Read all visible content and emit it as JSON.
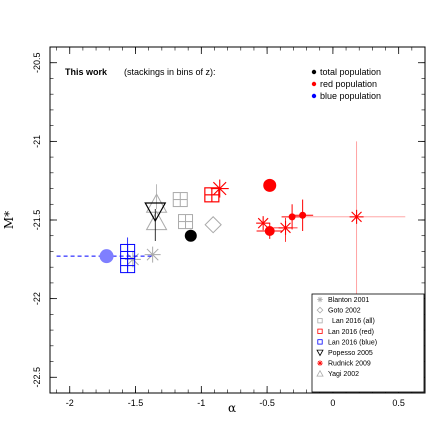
{
  "chart_data": {
    "type": "scatter",
    "xlabel": "α",
    "ylabel": "M*",
    "xlim": [
      -2.15,
      0.7
    ],
    "ylim": [
      -22.6,
      -20.4
    ],
    "y_inverted": true,
    "xticks": [
      -2,
      -1.5,
      -1,
      -0.5,
      0,
      0.5
    ],
    "xtick_labels": [
      "-2",
      "-1.5",
      "-1",
      "-0.5",
      "0",
      "0.5"
    ],
    "yticks": [
      -20.5,
      -21,
      -21.5,
      -22,
      -22.5
    ],
    "ytick_labels": [
      "-20.5",
      "-21",
      "-21.5",
      "-22",
      "-22.5"
    ],
    "grid": false,
    "legend_main": {
      "placement": "top-left",
      "title": "This work",
      "note": "(stackings in bins of z):",
      "entries": [
        {
          "label": "total population",
          "color": "#000000"
        },
        {
          "label": "red population",
          "color": "#ff0000"
        },
        {
          "label": "blue population",
          "color": "#0000ff"
        }
      ]
    },
    "legend_refs": {
      "placement": "bottom-right",
      "entries": [
        {
          "label": "Blanton 2001",
          "marker": "asterisk",
          "color": "#aaaaaa"
        },
        {
          "label": "Goto 2002",
          "marker": "diamond",
          "color": "#aaaaaa"
        },
        {
          "label": "Lan 2016 (all)",
          "marker": "square",
          "color": "#aaaaaa"
        },
        {
          "label": "Lan 2016 (red)",
          "marker": "square",
          "color": "#ff0000"
        },
        {
          "label": "Lan 2016 (blue)",
          "marker": "square",
          "color": "#0000ff"
        },
        {
          "label": "Popesso 2005",
          "marker": "triangle-down",
          "color": "#000000"
        },
        {
          "label": "Rudnick 2009",
          "marker": "asterisk",
          "color": "#ff0000"
        },
        {
          "label": "Yagi 2002",
          "marker": "triangle-up",
          "color": "#aaaaaa"
        }
      ]
    },
    "series": [
      {
        "name": "total population",
        "color": "#000000",
        "points": [
          {
            "x": -1.08,
            "y": -21.6
          }
        ]
      },
      {
        "name": "red population",
        "color": "#ff0000",
        "points": [
          {
            "x": -0.48,
            "y": -21.28,
            "yerr": 0.03
          },
          {
            "x": -0.48,
            "y": -21.57,
            "xerr": 0.1,
            "yerr": 0.05
          },
          {
            "x": -0.31,
            "y": -21.48,
            "xerr": 0.08,
            "yerr": 0.08
          },
          {
            "x": -0.23,
            "y": -21.47,
            "xerr": 0.08,
            "yerr": 0.1
          }
        ]
      },
      {
        "name": "blue population",
        "color": "#0000ff",
        "points": [
          {
            "x": -1.72,
            "y": -21.73
          }
        ]
      },
      {
        "name": "Blanton 2001",
        "color": "#aaaaaa",
        "points": [
          {
            "x": -1.52,
            "y": -21.75
          },
          {
            "x": -1.37,
            "y": -21.72
          }
        ]
      },
      {
        "name": "Goto 2002",
        "color": "#aaaaaa",
        "points": [
          {
            "x": -0.91,
            "y": -21.53
          }
        ]
      },
      {
        "name": "Lan 2016 (all)",
        "color": "#aaaaaa",
        "points": [
          {
            "x": -1.16,
            "y": -21.37
          },
          {
            "x": -1.12,
            "y": -21.51
          }
        ]
      },
      {
        "name": "Lan 2016 (red)",
        "color": "#ff0000",
        "points": [
          {
            "x": -0.92,
            "y": -21.34
          }
        ]
      },
      {
        "name": "Lan 2016 (blue)",
        "color": "#0000ff",
        "points": [
          {
            "x": -1.56,
            "y": -21.7
          },
          {
            "x": -1.56,
            "y": -21.79
          }
        ]
      },
      {
        "name": "Popesso 2005",
        "color": "#000000",
        "points": [
          {
            "x": -1.35,
            "y": -21.43
          }
        ]
      },
      {
        "name": "Rudnick 2009",
        "color": "#ff0000",
        "points": [
          {
            "x": -0.86,
            "y": -21.3
          },
          {
            "x": -0.53,
            "y": -21.52
          },
          {
            "x": -0.36,
            "y": -21.55
          },
          {
            "x": 0.18,
            "y": -21.48
          }
        ]
      },
      {
        "name": "Yagi 2002",
        "color": "#aaaaaa",
        "points": [
          {
            "x": -1.34,
            "y": -21.4
          },
          {
            "x": -1.34,
            "y": -21.51
          }
        ]
      }
    ]
  }
}
